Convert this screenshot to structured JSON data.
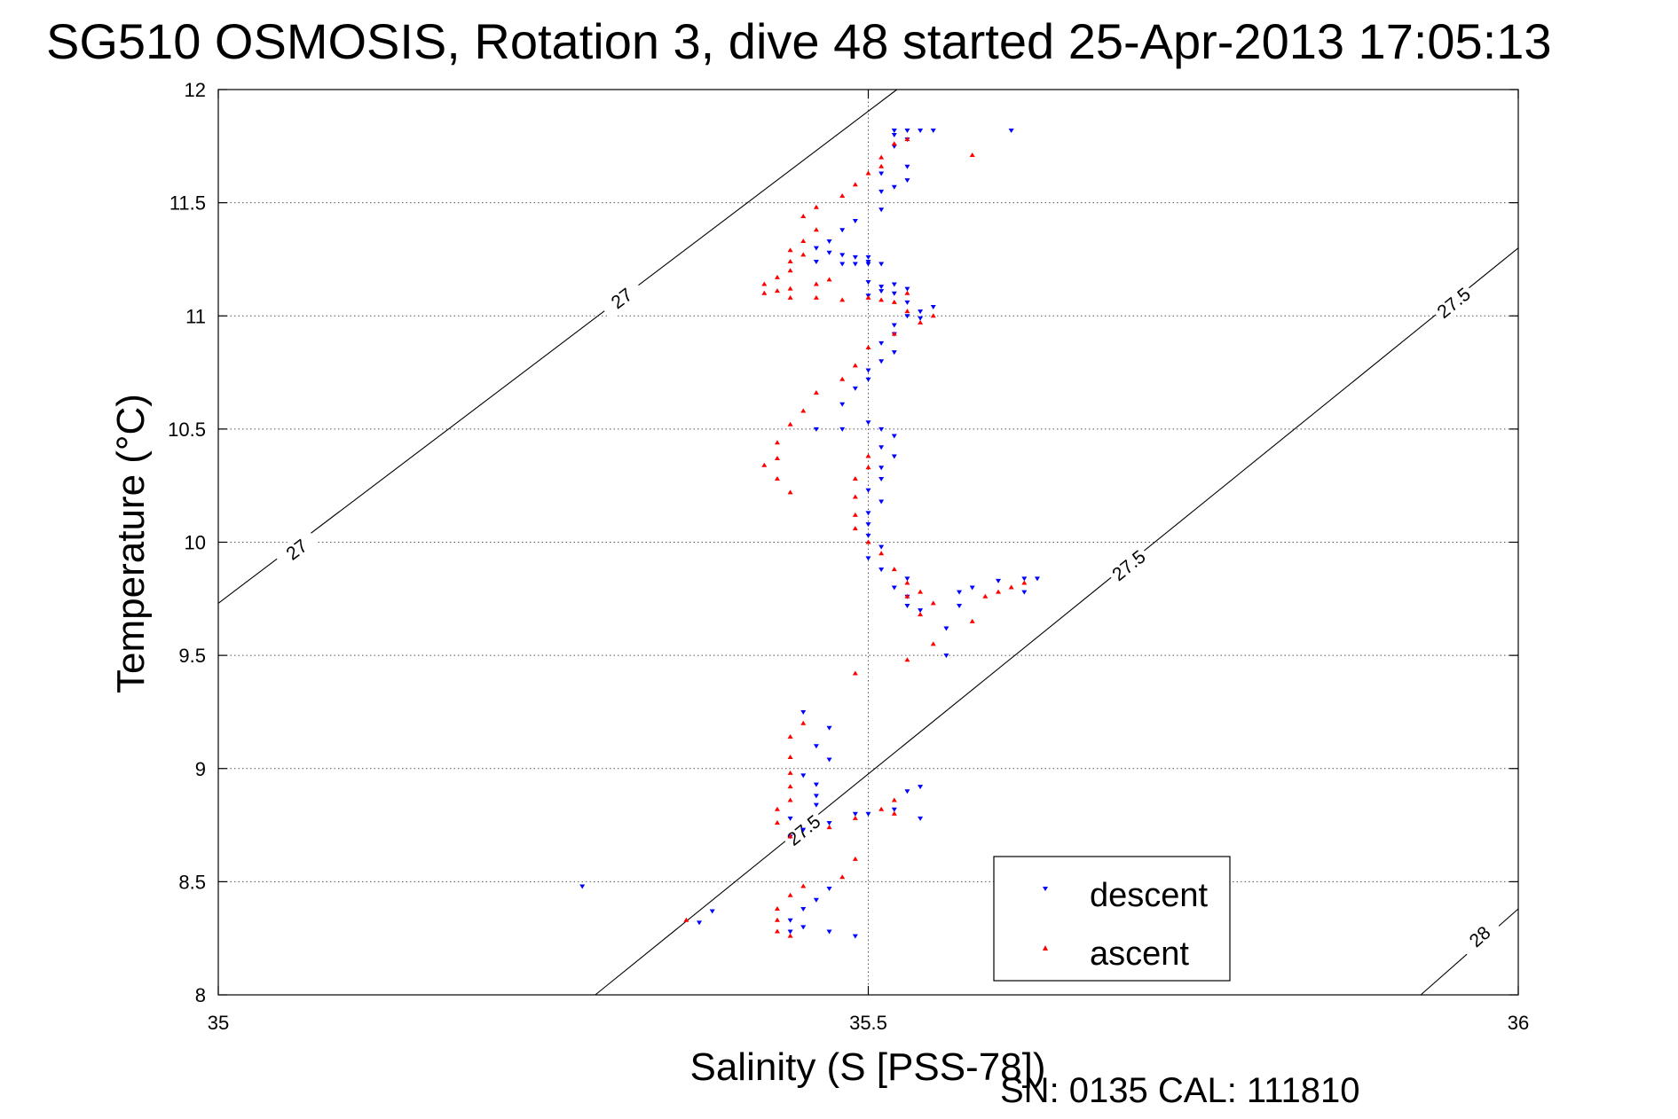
{
  "title": "SG510 OSMOSIS, Rotation 3, dive 48 started 25-Apr-2013 17:05:13",
  "footer": "SN: 0135  CAL: 111810",
  "chart_data": {
    "type": "scatter",
    "xlabel": "Salinity (S [PSS-78])",
    "ylabel": "Temperature (°C)",
    "xlim": [
      35,
      36
    ],
    "ylim": [
      8,
      12
    ],
    "xticks": [
      "35",
      "35.5",
      "36"
    ],
    "yticks": [
      "8",
      "8.5",
      "9",
      "9.5",
      "10",
      "10.5",
      "11",
      "11.5",
      "12"
    ],
    "grid": true,
    "legend_position": "bottom-right",
    "colors": {
      "descent": "#0000ff",
      "ascent": "#ff0000",
      "contour": "#000000",
      "grid": "#555555"
    },
    "series": [
      {
        "name": "descent",
        "marker": "triangle-down",
        "color": "#0000ff",
        "points": [
          [
            35.52,
            11.82
          ],
          [
            35.53,
            11.82
          ],
          [
            35.54,
            11.82
          ],
          [
            35.55,
            11.82
          ],
          [
            35.61,
            11.82
          ],
          [
            35.52,
            11.8
          ],
          [
            35.53,
            11.78
          ],
          [
            35.52,
            11.75
          ],
          [
            35.53,
            11.66
          ],
          [
            35.51,
            11.63
          ],
          [
            35.53,
            11.6
          ],
          [
            35.52,
            11.57
          ],
          [
            35.51,
            11.55
          ],
          [
            35.51,
            11.47
          ],
          [
            35.49,
            11.42
          ],
          [
            35.48,
            11.38
          ],
          [
            35.47,
            11.33
          ],
          [
            35.46,
            11.3
          ],
          [
            35.47,
            11.28
          ],
          [
            35.48,
            11.27
          ],
          [
            35.49,
            11.26
          ],
          [
            35.5,
            11.26
          ],
          [
            35.5,
            11.24
          ],
          [
            35.46,
            11.24
          ],
          [
            35.48,
            11.23
          ],
          [
            35.49,
            11.23
          ],
          [
            35.5,
            11.23
          ],
          [
            35.51,
            11.23
          ],
          [
            35.5,
            11.15
          ],
          [
            35.51,
            11.13
          ],
          [
            35.52,
            11.14
          ],
          [
            35.53,
            11.12
          ],
          [
            35.51,
            11.11
          ],
          [
            35.52,
            11.1
          ],
          [
            35.5,
            11.09
          ],
          [
            35.53,
            11.06
          ],
          [
            35.55,
            11.04
          ],
          [
            35.54,
            11.02
          ],
          [
            35.53,
            11
          ],
          [
            35.52,
            10.96
          ],
          [
            35.54,
            10.99
          ],
          [
            35.52,
            10.92
          ],
          [
            35.51,
            10.88
          ],
          [
            35.52,
            10.84
          ],
          [
            35.51,
            10.8
          ],
          [
            35.5,
            10.76
          ],
          [
            35.5,
            10.72
          ],
          [
            35.49,
            10.68
          ],
          [
            35.48,
            10.61
          ],
          [
            35.46,
            10.5
          ],
          [
            35.48,
            10.5
          ],
          [
            35.5,
            10.53
          ],
          [
            35.51,
            10.5
          ],
          [
            35.52,
            10.47
          ],
          [
            35.51,
            10.42
          ],
          [
            35.52,
            10.38
          ],
          [
            35.51,
            10.33
          ],
          [
            35.51,
            10.28
          ],
          [
            35.5,
            10.23
          ],
          [
            35.51,
            10.18
          ],
          [
            35.5,
            10.13
          ],
          [
            35.5,
            10.08
          ],
          [
            35.5,
            10.03
          ],
          [
            35.51,
            9.98
          ],
          [
            35.5,
            9.93
          ],
          [
            35.51,
            9.88
          ],
          [
            35.53,
            9.84
          ],
          [
            35.52,
            9.8
          ],
          [
            35.53,
            9.76
          ],
          [
            35.53,
            9.72
          ],
          [
            35.54,
            9.7
          ],
          [
            35.57,
            9.78
          ],
          [
            35.58,
            9.8
          ],
          [
            35.6,
            9.83
          ],
          [
            35.62,
            9.84
          ],
          [
            35.63,
            9.84
          ],
          [
            35.62,
            9.78
          ],
          [
            35.57,
            9.72
          ],
          [
            35.56,
            9.62
          ],
          [
            35.56,
            9.5
          ],
          [
            35.45,
            9.25
          ],
          [
            35.47,
            9.18
          ],
          [
            35.46,
            9.1
          ],
          [
            35.47,
            9.04
          ],
          [
            35.45,
            8.97
          ],
          [
            35.46,
            8.93
          ],
          [
            35.46,
            8.88
          ],
          [
            35.46,
            8.84
          ],
          [
            35.44,
            8.78
          ],
          [
            35.45,
            8.73
          ],
          [
            35.44,
            8.7
          ],
          [
            35.47,
            8.76
          ],
          [
            35.49,
            8.8
          ],
          [
            35.5,
            8.8
          ],
          [
            35.53,
            8.9
          ],
          [
            35.54,
            8.92
          ],
          [
            35.52,
            8.82
          ],
          [
            35.54,
            8.78
          ],
          [
            35.47,
            8.47
          ],
          [
            35.46,
            8.42
          ],
          [
            35.45,
            8.38
          ],
          [
            35.44,
            8.33
          ],
          [
            35.44,
            8.28
          ],
          [
            35.45,
            8.3
          ],
          [
            35.47,
            8.28
          ],
          [
            35.49,
            8.26
          ],
          [
            35.28,
            8.48
          ],
          [
            35.38,
            8.37
          ],
          [
            35.37,
            8.32
          ]
        ]
      },
      {
        "name": "ascent",
        "marker": "triangle-up",
        "color": "#ff0000",
        "points": [
          [
            35.53,
            11.78
          ],
          [
            35.52,
            11.76
          ],
          [
            35.51,
            11.7
          ],
          [
            35.51,
            11.66
          ],
          [
            35.5,
            11.63
          ],
          [
            35.49,
            11.58
          ],
          [
            35.48,
            11.53
          ],
          [
            35.46,
            11.48
          ],
          [
            35.45,
            11.44
          ],
          [
            35.46,
            11.38
          ],
          [
            35.45,
            11.33
          ],
          [
            35.44,
            11.29
          ],
          [
            35.45,
            11.27
          ],
          [
            35.44,
            11.24
          ],
          [
            35.44,
            11.2
          ],
          [
            35.43,
            11.17
          ],
          [
            35.42,
            11.14
          ],
          [
            35.42,
            11.1
          ],
          [
            35.43,
            11.11
          ],
          [
            35.44,
            11.12
          ],
          [
            35.46,
            11.14
          ],
          [
            35.47,
            11.16
          ],
          [
            35.44,
            11.08
          ],
          [
            35.46,
            11.08
          ],
          [
            35.48,
            11.07
          ],
          [
            35.5,
            11.08
          ],
          [
            35.51,
            11.07
          ],
          [
            35.53,
            11.1
          ],
          [
            35.52,
            11.06
          ],
          [
            35.53,
            11.02
          ],
          [
            35.55,
            11
          ],
          [
            35.54,
            10.97
          ],
          [
            35.52,
            10.92
          ],
          [
            35.5,
            10.86
          ],
          [
            35.49,
            10.78
          ],
          [
            35.48,
            10.72
          ],
          [
            35.46,
            10.66
          ],
          [
            35.45,
            10.58
          ],
          [
            35.44,
            10.52
          ],
          [
            35.43,
            10.44
          ],
          [
            35.43,
            10.37
          ],
          [
            35.42,
            10.34
          ],
          [
            35.43,
            10.28
          ],
          [
            35.44,
            10.22
          ],
          [
            35.5,
            10.38
          ],
          [
            35.5,
            10.33
          ],
          [
            35.49,
            10.28
          ],
          [
            35.49,
            10.2
          ],
          [
            35.49,
            10.12
          ],
          [
            35.49,
            10.06
          ],
          [
            35.5,
            10
          ],
          [
            35.51,
            9.95
          ],
          [
            35.52,
            9.88
          ],
          [
            35.53,
            9.82
          ],
          [
            35.54,
            9.78
          ],
          [
            35.53,
            9.76
          ],
          [
            35.59,
            9.76
          ],
          [
            35.6,
            9.78
          ],
          [
            35.61,
            9.8
          ],
          [
            35.62,
            9.82
          ],
          [
            35.55,
            9.73
          ],
          [
            35.54,
            9.68
          ],
          [
            35.58,
            9.65
          ],
          [
            35.55,
            9.55
          ],
          [
            35.53,
            9.48
          ],
          [
            35.49,
            9.42
          ],
          [
            35.45,
            9.2
          ],
          [
            35.44,
            9.14
          ],
          [
            35.44,
            9.05
          ],
          [
            35.44,
            8.98
          ],
          [
            35.44,
            8.92
          ],
          [
            35.44,
            8.86
          ],
          [
            35.43,
            8.82
          ],
          [
            35.43,
            8.76
          ],
          [
            35.44,
            8.7
          ],
          [
            35.47,
            8.74
          ],
          [
            35.49,
            8.78
          ],
          [
            35.51,
            8.82
          ],
          [
            35.52,
            8.86
          ],
          [
            35.52,
            8.8
          ],
          [
            35.49,
            8.6
          ],
          [
            35.48,
            8.52
          ],
          [
            35.45,
            8.48
          ],
          [
            35.44,
            8.44
          ],
          [
            35.43,
            8.38
          ],
          [
            35.43,
            8.33
          ],
          [
            35.43,
            8.28
          ],
          [
            35.44,
            8.26
          ],
          [
            35.36,
            8.33
          ],
          [
            35.58,
            11.71
          ]
        ]
      }
    ],
    "contours": [
      {
        "label": "27",
        "points": [
          [
            35,
            9.73
          ],
          [
            35.522,
            12
          ]
        ],
        "label_at": [
          [
            35.06,
            9.97
          ],
          [
            35.31,
            11.08
          ]
        ]
      },
      {
        "label": "27.5",
        "points": [
          [
            35.29,
            8
          ],
          [
            36,
            11.3
          ]
        ],
        "label_at": [
          [
            35.45,
            8.73
          ],
          [
            35.7,
            9.9
          ],
          [
            35.95,
            11.06
          ]
        ]
      },
      {
        "label": "28",
        "points": [
          [
            35.925,
            8
          ],
          [
            36,
            8.38
          ]
        ],
        "label_at": [
          [
            35.97,
            8.26
          ]
        ]
      }
    ]
  }
}
